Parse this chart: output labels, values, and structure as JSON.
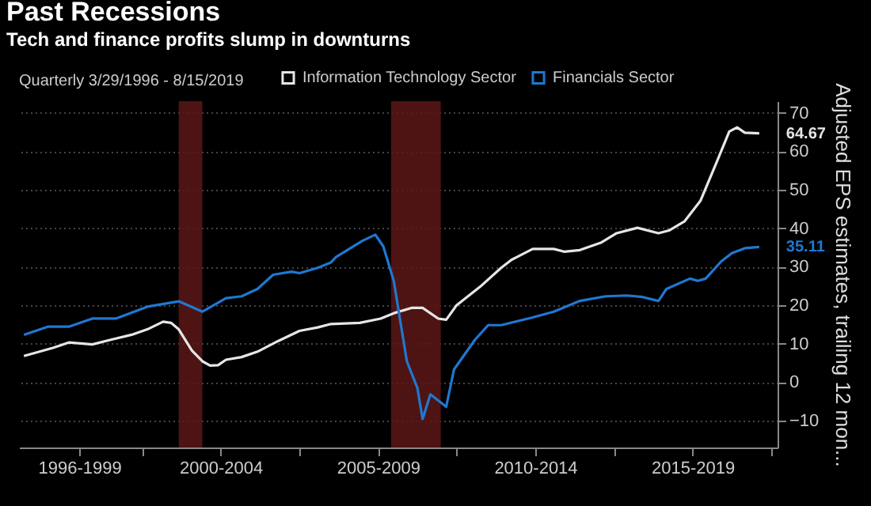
{
  "chart_data": {
    "type": "line",
    "title": "Past Recessions",
    "subtitle": "Tech and finance profits slump in downturns",
    "ylabel": "Adjusted EPS estimates, trailing 12 mon...",
    "annotations": [
      "Quarterly 3/29/1996 - 8/15/2019",
      {
        "text": "64.67",
        "x": "2019-08-15",
        "y": 64.67
      },
      {
        "text": "35.11",
        "x": "2019-08-15",
        "y": 35.11
      }
    ],
    "series": [
      {
        "name": "Information Technology Sector",
        "color": "#e6e6e6",
        "x": [
          "1996-03-29",
          "1997-03",
          "1997-09",
          "1998-06",
          "1999-01",
          "1999-09",
          "2000-03",
          "2000-09",
          "2000-12",
          "2001-03",
          "2001-08",
          "2001-12",
          "2002-03",
          "2002-06",
          "2002-09",
          "2003-03",
          "2003-09",
          "2004-05",
          "2005-01",
          "2005-08",
          "2006-01",
          "2006-12",
          "2007-08",
          "2008-01",
          "2008-08",
          "2008-12",
          "2009-06",
          "2009-09",
          "2010-01",
          "2010-10",
          "2011-06",
          "2011-10",
          "2011-12",
          "2012-06",
          "2013-02",
          "2013-06",
          "2013-12",
          "2014-08",
          "2015-02",
          "2015-10",
          "2016-06",
          "2016-10",
          "2017-04",
          "2017-10",
          "2018-04",
          "2018-09",
          "2018-12",
          "2019-03",
          "2019-08-15"
        ],
        "values": [
          6.8,
          8.9,
          10.3,
          9.8,
          11,
          12.3,
          13.7,
          15.7,
          15.4,
          13.7,
          8.2,
          5.4,
          4.3,
          4.4,
          5.8,
          6.5,
          7.9,
          10.7,
          13.3,
          14.2,
          15.1,
          15.4,
          16.5,
          17.9,
          19.3,
          19.3,
          16.5,
          16.2,
          20,
          24.8,
          29.7,
          31.8,
          32.5,
          34.6,
          34.6,
          33.9,
          34.3,
          36.2,
          38.7,
          40.1,
          38.7,
          39.4,
          41.8,
          47.1,
          56.8,
          65.1,
          66.2,
          64.8,
          64.67
        ]
      },
      {
        "name": "Financials Sector",
        "color": "#1f78d1",
        "x": [
          "1996-03-29",
          "1997-01",
          "1997-09",
          "1998-06",
          "1999-03",
          "2000-03",
          "2001-03",
          "2001-12",
          "2002-09",
          "2003-03",
          "2003-09",
          "2004-03",
          "2004-10",
          "2005-01",
          "2005-08",
          "2006-01",
          "2006-03",
          "2007-01",
          "2007-06",
          "2007-09",
          "2008-01",
          "2008-06",
          "2008-10",
          "2008-12",
          "2009-03",
          "2009-09",
          "2009-12",
          "2010-08",
          "2011-01",
          "2011-06",
          "2012-06",
          "2013-02",
          "2013-12",
          "2014-10",
          "2015-06",
          "2015-12",
          "2016-06",
          "2016-09",
          "2017-06",
          "2017-09",
          "2017-12",
          "2018-06",
          "2018-10",
          "2019-03",
          "2019-08-15"
        ],
        "values": [
          12.3,
          14.4,
          14.4,
          16.5,
          16.5,
          19.6,
          21,
          18.3,
          21.8,
          22.3,
          24.2,
          27.9,
          28.7,
          28.3,
          29.7,
          31.1,
          32.5,
          36.7,
          38.3,
          35.3,
          26.3,
          5.4,
          -1.5,
          -9.6,
          -3.2,
          -6.4,
          3.3,
          11,
          14.8,
          14.8,
          16.8,
          18.3,
          21.1,
          22.3,
          22.5,
          22.1,
          21.1,
          24.2,
          26.9,
          26.3,
          26.9,
          31.4,
          33.5,
          34.8,
          35.11
        ]
      }
    ],
    "xlim": [
      "1996-02-01",
      "2020-03-15"
    ],
    "xticks": [
      {
        "value": "1998-01-01",
        "label": "1996-1999"
      },
      {
        "value": "2000-01-01",
        "label": null
      },
      {
        "value": "2002-07-01",
        "label": "2000-2004"
      },
      {
        "value": "2005-01-01",
        "label": null
      },
      {
        "value": "2007-07-01",
        "label": "2005-2009"
      },
      {
        "value": "2010-01-01",
        "label": null
      },
      {
        "value": "2012-07-01",
        "label": "2010-2014"
      },
      {
        "value": "2015-01-01",
        "label": null
      },
      {
        "value": "2017-07-01",
        "label": "2015-2019"
      },
      {
        "value": "2020-01-01",
        "label": null
      }
    ],
    "ylim": [
      -17,
      73
    ],
    "yticks": [
      -10,
      0,
      10,
      20,
      30,
      40,
      50,
      60,
      70
    ],
    "bands": [
      {
        "axis": "x",
        "from": "2001-03-01",
        "to": "2001-11-30",
        "color": "#5c1616"
      },
      {
        "axis": "x",
        "from": "2007-12-01",
        "to": "2009-06-30",
        "color": "#5c1616"
      }
    ],
    "grid": "y",
    "legend": "top",
    "marker": "none",
    "line_style": "solid"
  }
}
